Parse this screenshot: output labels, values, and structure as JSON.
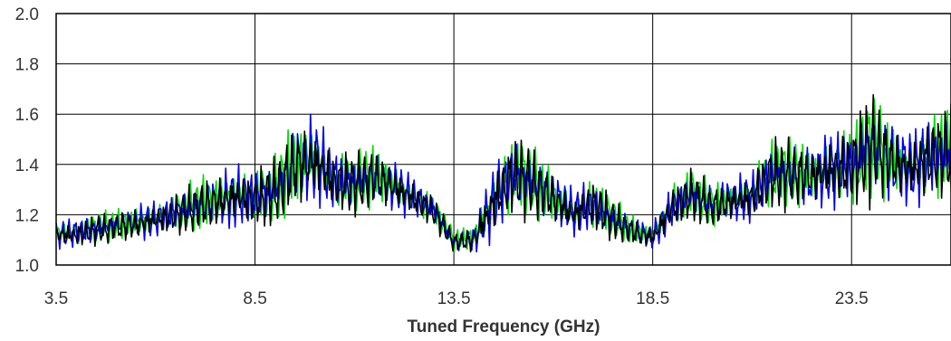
{
  "chart_data": {
    "type": "line",
    "title": "",
    "xlabel": "Tuned Frequency (GHz)",
    "ylabel": "",
    "xlim": [
      3.5,
      26.0
    ],
    "ylim": [
      1.0,
      2.0
    ],
    "x_ticks": [
      "3.5",
      "8.5",
      "13.5",
      "18.5",
      "23.5"
    ],
    "y_ticks": [
      "1.0",
      "1.2",
      "1.4",
      "1.6",
      "1.8",
      "2.0"
    ],
    "grid": true,
    "colors": [
      "#00dd00",
      "#0000ee",
      "#000000"
    ],
    "series": [
      {
        "x": [
          3.5,
          4.0,
          4.5,
          5.0,
          5.5,
          6.0,
          6.5,
          7.0,
          7.5,
          8.0,
          8.5,
          9.0,
          9.5,
          10.0,
          10.5,
          11.0,
          11.5,
          12.0,
          12.5,
          13.0,
          13.5,
          14.0,
          14.5,
          15.0,
          15.5,
          16.0,
          16.5,
          17.0,
          17.5,
          18.0,
          18.5,
          19.0,
          19.5,
          20.0,
          20.5,
          21.0,
          21.5,
          22.0,
          22.5,
          23.0,
          23.5,
          24.0,
          24.5,
          25.0,
          25.5,
          26.0
        ],
        "values": [
          1.13,
          1.13,
          1.15,
          1.16,
          1.17,
          1.19,
          1.21,
          1.24,
          1.26,
          1.28,
          1.27,
          1.3,
          1.4,
          1.42,
          1.34,
          1.33,
          1.36,
          1.32,
          1.27,
          1.22,
          1.1,
          1.11,
          1.26,
          1.37,
          1.33,
          1.27,
          1.21,
          1.25,
          1.19,
          1.14,
          1.12,
          1.24,
          1.29,
          1.24,
          1.26,
          1.28,
          1.37,
          1.37,
          1.36,
          1.39,
          1.4,
          1.48,
          1.42,
          1.39,
          1.44,
          1.46
        ],
        "amplitude": [
          0.05,
          0.06,
          0.06,
          0.06,
          0.07,
          0.07,
          0.08,
          0.1,
          0.11,
          0.12,
          0.12,
          0.13,
          0.18,
          0.17,
          0.13,
          0.12,
          0.12,
          0.1,
          0.08,
          0.06,
          0.04,
          0.06,
          0.14,
          0.16,
          0.14,
          0.11,
          0.09,
          0.11,
          0.08,
          0.06,
          0.05,
          0.09,
          0.1,
          0.09,
          0.09,
          0.1,
          0.14,
          0.14,
          0.13,
          0.15,
          0.16,
          0.22,
          0.17,
          0.15,
          0.17,
          0.19
        ]
      },
      {
        "x": [
          3.5,
          4.0,
          4.5,
          5.0,
          5.5,
          6.0,
          6.5,
          7.0,
          7.5,
          8.0,
          8.5,
          9.0,
          9.5,
          10.0,
          10.5,
          11.0,
          11.5,
          12.0,
          12.5,
          13.0,
          13.5,
          14.0,
          14.5,
          15.0,
          15.5,
          16.0,
          16.5,
          17.0,
          17.5,
          18.0,
          18.5,
          19.0,
          19.5,
          20.0,
          20.5,
          21.0,
          21.5,
          22.0,
          22.5,
          23.0,
          23.5,
          24.0,
          24.5,
          25.0,
          25.5,
          26.0
        ],
        "values": [
          1.12,
          1.13,
          1.14,
          1.16,
          1.17,
          1.18,
          1.21,
          1.23,
          1.25,
          1.27,
          1.27,
          1.3,
          1.4,
          1.42,
          1.34,
          1.33,
          1.35,
          1.31,
          1.27,
          1.22,
          1.09,
          1.1,
          1.25,
          1.37,
          1.33,
          1.27,
          1.21,
          1.24,
          1.18,
          1.14,
          1.11,
          1.23,
          1.28,
          1.24,
          1.26,
          1.27,
          1.37,
          1.36,
          1.35,
          1.38,
          1.4,
          1.48,
          1.41,
          1.38,
          1.43,
          1.45
        ],
        "amplitude": [
          0.05,
          0.06,
          0.06,
          0.06,
          0.07,
          0.07,
          0.08,
          0.1,
          0.11,
          0.12,
          0.12,
          0.13,
          0.18,
          0.17,
          0.13,
          0.12,
          0.12,
          0.1,
          0.08,
          0.06,
          0.04,
          0.06,
          0.14,
          0.16,
          0.14,
          0.11,
          0.09,
          0.11,
          0.08,
          0.06,
          0.05,
          0.09,
          0.1,
          0.09,
          0.09,
          0.1,
          0.14,
          0.14,
          0.13,
          0.15,
          0.16,
          0.22,
          0.17,
          0.15,
          0.17,
          0.19
        ]
      },
      {
        "x": [
          3.5,
          4.0,
          4.5,
          5.0,
          5.5,
          6.0,
          6.5,
          7.0,
          7.5,
          8.0,
          8.5,
          9.0,
          9.5,
          10.0,
          10.5,
          11.0,
          11.5,
          12.0,
          12.5,
          13.0,
          13.5,
          14.0,
          14.5,
          15.0,
          15.5,
          16.0,
          16.5,
          17.0,
          17.5,
          18.0,
          18.5,
          19.0,
          19.5,
          20.0,
          20.5,
          21.0,
          21.5,
          22.0,
          22.5,
          23.0,
          23.5,
          24.0,
          24.5,
          25.0,
          25.5,
          26.0
        ],
        "values": [
          1.12,
          1.12,
          1.14,
          1.15,
          1.16,
          1.18,
          1.2,
          1.23,
          1.25,
          1.27,
          1.26,
          1.29,
          1.39,
          1.41,
          1.33,
          1.32,
          1.35,
          1.31,
          1.26,
          1.21,
          1.09,
          1.1,
          1.25,
          1.36,
          1.32,
          1.26,
          1.2,
          1.24,
          1.18,
          1.13,
          1.11,
          1.23,
          1.28,
          1.23,
          1.25,
          1.27,
          1.36,
          1.36,
          1.35,
          1.38,
          1.39,
          1.47,
          1.41,
          1.38,
          1.43,
          1.45
        ],
        "amplitude": [
          0.05,
          0.06,
          0.06,
          0.06,
          0.07,
          0.07,
          0.08,
          0.1,
          0.11,
          0.12,
          0.12,
          0.13,
          0.18,
          0.17,
          0.13,
          0.12,
          0.12,
          0.1,
          0.08,
          0.06,
          0.04,
          0.06,
          0.14,
          0.16,
          0.14,
          0.11,
          0.09,
          0.11,
          0.08,
          0.06,
          0.05,
          0.09,
          0.1,
          0.09,
          0.09,
          0.1,
          0.14,
          0.14,
          0.13,
          0.15,
          0.16,
          0.22,
          0.17,
          0.15,
          0.17,
          0.19
        ]
      }
    ]
  }
}
